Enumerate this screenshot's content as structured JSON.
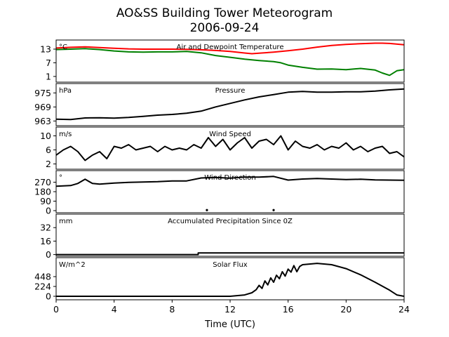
{
  "chart_data": {
    "type": "line",
    "title": "AO&SS Building Tower Meteorogram",
    "subtitle": "2006-09-24",
    "xlabel": "Time (UTC)",
    "xlim": [
      0,
      24
    ],
    "xticks": [
      "0",
      "4",
      "8",
      "12",
      "16",
      "20",
      "24"
    ],
    "panels": [
      {
        "title": "Air and Dewpoint Temperature",
        "unit": "°C",
        "ylim": [
          -1.5,
          17
        ],
        "yticks": [
          1,
          7,
          13
        ],
        "series": [
          {
            "color": "#ff0000",
            "x": [
              0,
              1,
              2,
              3,
              4,
              5,
              6,
              7,
              8,
              9,
              10,
              11,
              12,
              13,
              13.5,
              14,
              15,
              16,
              17,
              18,
              19,
              20,
              21,
              22,
              22.5,
              23,
              24
            ],
            "y": [
              13.5,
              13.8,
              14.0,
              13.7,
              13.4,
              13.1,
              13.0,
              13.0,
              13.0,
              12.9,
              12.7,
              12.4,
              12.0,
              11.3,
              11.0,
              11.2,
              11.7,
              12.3,
              13.0,
              13.9,
              14.6,
              15.1,
              15.4,
              15.6,
              15.6,
              15.5,
              14.9
            ]
          },
          {
            "color": "#008000",
            "x": [
              0,
              1,
              2,
              3,
              4,
              5,
              6,
              7,
              8,
              9,
              10,
              11,
              12,
              13,
              14,
              15,
              15.5,
              16,
              17,
              18,
              19,
              20,
              21,
              22,
              22.5,
              23,
              23.5,
              24
            ],
            "y": [
              12.8,
              13.0,
              13.2,
              12.8,
              12.2,
              11.8,
              11.7,
              11.8,
              11.8,
              12.0,
              11.4,
              10.2,
              9.4,
              8.6,
              8.0,
              7.5,
              7.0,
              6.0,
              5.0,
              4.2,
              4.3,
              4.0,
              4.5,
              3.8,
              2.5,
              1.5,
              3.5,
              4.0
            ]
          }
        ]
      },
      {
        "title": "Pressure",
        "unit": "hPa",
        "ylim": [
          961,
          979
        ],
        "yticks": [
          963,
          969,
          975
        ],
        "series": [
          {
            "color": "#000000",
            "x": [
              0,
              1,
              2,
              3,
              4,
              5,
              6,
              7,
              8,
              9,
              10,
              11,
              12,
              13,
              14,
              15,
              16,
              17,
              18,
              19,
              20,
              21,
              22,
              23,
              24
            ],
            "y": [
              963.8,
              963.6,
              964.3,
              964.4,
              964.2,
              964.5,
              965.0,
              965.5,
              965.8,
              966.3,
              967.2,
              969.0,
              970.5,
              972.0,
              973.3,
              974.3,
              975.3,
              975.6,
              975.3,
              975.3,
              975.5,
              975.5,
              975.8,
              976.3,
              976.7
            ]
          }
        ]
      },
      {
        "title": "Wind Speed",
        "unit": "m/s",
        "ylim": [
          0.5,
          12.5
        ],
        "yticks": [
          2,
          6,
          10
        ],
        "series": [
          {
            "color": "#000000",
            "x": [
              0,
              0.5,
              1,
              1.5,
              2,
              2.5,
              3,
              3.5,
              4,
              4.5,
              5,
              5.5,
              6,
              6.5,
              7,
              7.5,
              8,
              8.5,
              9,
              9.5,
              10,
              10.5,
              11,
              11.5,
              12,
              12.5,
              13,
              13.5,
              14,
              14.5,
              15,
              15.5,
              16,
              16.5,
              17,
              17.5,
              18,
              18.5,
              19,
              19.5,
              20,
              20.5,
              21,
              21.5,
              22,
              22.5,
              23,
              23.5,
              24
            ],
            "y": [
              4.5,
              6.0,
              7.0,
              5.5,
              3.0,
              4.5,
              5.5,
              3.5,
              7.0,
              6.5,
              7.5,
              6.0,
              6.5,
              7.0,
              5.5,
              7.0,
              6.0,
              6.5,
              6.0,
              7.5,
              6.5,
              9.5,
              7.0,
              9.0,
              6.0,
              8.0,
              9.5,
              6.5,
              8.5,
              9.0,
              7.5,
              10.0,
              6.0,
              8.5,
              7.0,
              6.5,
              7.5,
              6.0,
              7.0,
              6.5,
              8.0,
              6.0,
              7.0,
              5.5,
              6.5,
              7.0,
              5.0,
              5.5,
              4.0
            ]
          }
        ]
      },
      {
        "title": "Wind Direction",
        "unit": "°",
        "ylim": [
          -20,
          380
        ],
        "yticks": [
          0,
          90,
          180,
          270
        ],
        "series": [
          {
            "color": "#000000",
            "x": [
              0,
              1,
              1.5,
              2,
              2.5,
              3,
              4,
              5,
              6,
              7,
              8,
              9,
              10,
              11,
              12,
              13,
              14,
              15,
              16,
              17,
              18,
              19,
              20,
              21,
              22,
              23,
              24
            ],
            "y": [
              232,
              238,
              258,
              298,
              258,
              252,
              262,
              268,
              272,
              275,
              282,
              282,
              310,
              315,
              308,
              318,
              318,
              325,
              290,
              300,
              305,
              300,
              295,
              298,
              292,
              290,
              288
            ]
          },
          {
            "color": "#000000",
            "mode": "points",
            "x": [
              10.4,
              15.0
            ],
            "y": [
              5,
              5
            ]
          }
        ]
      },
      {
        "title": "Accumulated Precipitation Since 0Z",
        "unit": "mm",
        "ylim": [
          -2,
          48
        ],
        "yticks": [
          0,
          16,
          32
        ],
        "series": [
          {
            "color": "#000000",
            "x": [
              0,
              9.8,
              9.8,
              24
            ],
            "y": [
              0,
              0,
              2,
              2
            ]
          }
        ]
      },
      {
        "title": "Solar Flux",
        "unit": "W/m^2",
        "ylim": [
          -80,
          880
        ],
        "yticks": [
          0,
          224,
          448
        ],
        "series": [
          {
            "color": "#000000",
            "x": [
              0,
              12,
              13,
              13.5,
              13.8,
              14,
              14.2,
              14.4,
              14.6,
              14.8,
              15,
              15.2,
              15.4,
              15.6,
              15.8,
              16,
              16.2,
              16.4,
              16.6,
              16.8,
              17,
              18,
              19,
              20,
              21,
              22,
              23,
              23.5,
              24
            ],
            "y": [
              0,
              0,
              30,
              80,
              150,
              250,
              180,
              350,
              260,
              420,
              320,
              480,
              400,
              560,
              460,
              620,
              550,
              700,
              560,
              680,
              720,
              750,
              720,
              630,
              490,
              320,
              140,
              30,
              0
            ]
          }
        ]
      }
    ]
  }
}
